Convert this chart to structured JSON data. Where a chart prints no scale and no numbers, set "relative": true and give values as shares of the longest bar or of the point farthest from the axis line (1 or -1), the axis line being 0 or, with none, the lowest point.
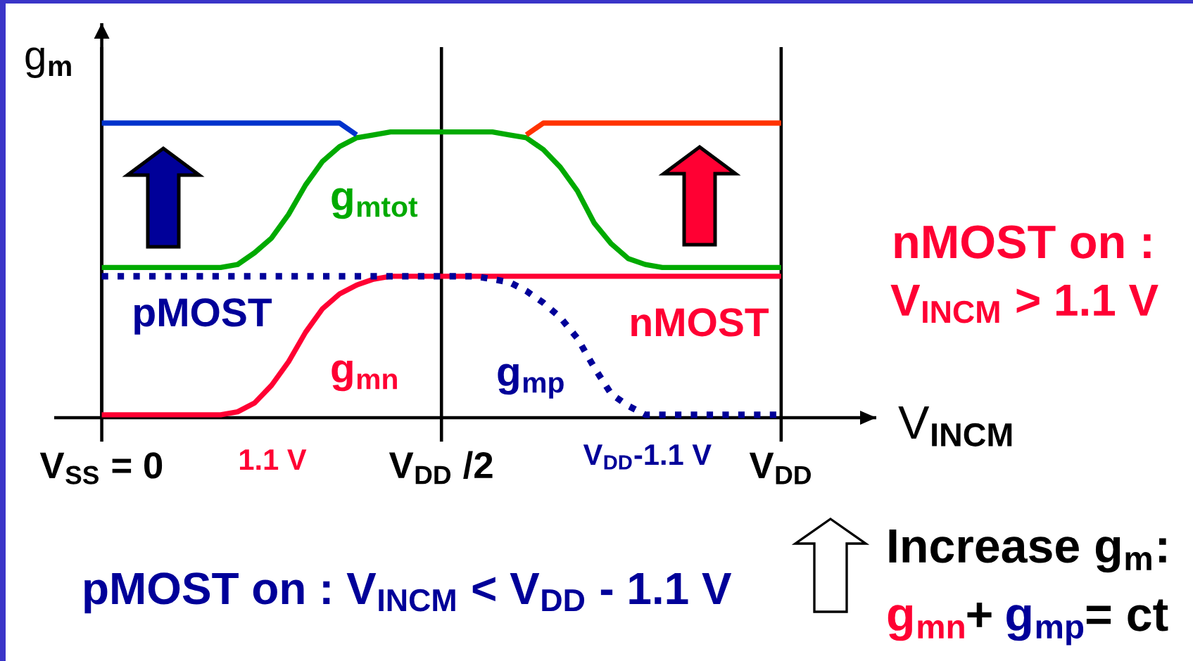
{
  "chart_data": {
    "type": "line",
    "relative": true,
    "tick_labels": "x",
    "grid": "x",
    "xlabel": "V$_{INCM}$",
    "ylabel": "g$_{m}$",
    "categories": [
      "V$_{SS}$ = 0",
      null,
      null,
      null,
      null,
      null,
      null,
      null,
      null,
      null,
      null,
      null,
      null,
      null,
      null,
      null,
      null,
      null,
      null,
      null,
      "V$_{DD}$ /2",
      null,
      null,
      null,
      null,
      null,
      null,
      null,
      null,
      null,
      null,
      null,
      null,
      null,
      null,
      null,
      null,
      null,
      null,
      null,
      "V$_{DD}$"
    ],
    "series": [
      {
        "name": "g$_{mn}$",
        "color": "#ff0033",
        "values": [
          0.01,
          0.01,
          0.01,
          0.01,
          0.01,
          0.01,
          0.01,
          0.01,
          0.02,
          0.05,
          0.11,
          0.19,
          0.29,
          0.37,
          0.42,
          0.45,
          0.47,
          0.48,
          0.48,
          0.48,
          0.48,
          0.48,
          0.48,
          0.48,
          0.48,
          0.48,
          0.48,
          0.48,
          0.48,
          0.48,
          0.48,
          0.48,
          0.48,
          0.48,
          0.48,
          0.48,
          0.48,
          0.48,
          0.48,
          0.48,
          0.48
        ]
      },
      {
        "name": "g$_{mp}$",
        "color": "#000099",
        "line_style": "dotted",
        "values": [
          0.48,
          0.48,
          0.48,
          0.48,
          0.48,
          0.48,
          0.48,
          0.48,
          0.48,
          0.48,
          0.48,
          0.48,
          0.48,
          0.48,
          0.48,
          0.48,
          0.48,
          0.48,
          0.48,
          0.48,
          0.48,
          0.48,
          0.48,
          0.47,
          0.46,
          0.43,
          0.39,
          0.34,
          0.27,
          0.17,
          0.08,
          0.04,
          0.01,
          0.01,
          0.01,
          0.01,
          0.01,
          0.01,
          0.01,
          0.01,
          0.01
        ]
      },
      {
        "name": "g$_{mtot}$",
        "color": "#00aa00",
        "values": [
          0.51,
          0.51,
          0.51,
          0.51,
          0.51,
          0.51,
          0.51,
          0.51,
          0.52,
          0.56,
          0.61,
          0.69,
          0.79,
          0.87,
          0.92,
          0.95,
          0.96,
          0.97,
          0.97,
          0.97,
          0.97,
          0.97,
          0.97,
          0.97,
          0.96,
          0.95,
          0.91,
          0.85,
          0.77,
          0.66,
          0.59,
          0.54,
          0.52,
          0.51,
          0.51,
          0.51,
          0.51,
          0.51,
          0.51,
          0.51,
          0.51
        ]
      },
      {
        "color": "#0033cc",
        "values": [
          1.0,
          1.0,
          1.0,
          1.0,
          1.0,
          1.0,
          1.0,
          1.0,
          1.0,
          1.0,
          1.0,
          1.0,
          1.0,
          1.0,
          1.0,
          0.96,
          null,
          null,
          null,
          null,
          null,
          null,
          null,
          null,
          null,
          null,
          null,
          null,
          null,
          null,
          null,
          null,
          null,
          null,
          null,
          null,
          null,
          null,
          null,
          null,
          null
        ]
      },
      {
        "color": "#ff3300",
        "values": [
          null,
          null,
          null,
          null,
          null,
          null,
          null,
          null,
          null,
          null,
          null,
          null,
          null,
          null,
          null,
          null,
          null,
          null,
          null,
          null,
          null,
          null,
          null,
          null,
          null,
          0.96,
          1.0,
          1.0,
          1.0,
          1.0,
          1.0,
          1.0,
          1.0,
          1.0,
          1.0,
          1.0,
          1.0,
          1.0,
          1.0,
          1.0,
          1.0
        ]
      }
    ],
    "annotations": [
      "pMOST",
      "nMOST",
      "1.1 V",
      "V$_{DD}$-1.1 V",
      "nMOST on :",
      "V$_{INCM}$ > 1.1 V",
      "pMOST on : V$_{INCM}$ < V$_{DD}$ - 1.1 V",
      "Increase g$_{m}$:",
      "g$_{mn}$",
      "+",
      "g$_{mp}$",
      "= ct"
    ]
  }
}
